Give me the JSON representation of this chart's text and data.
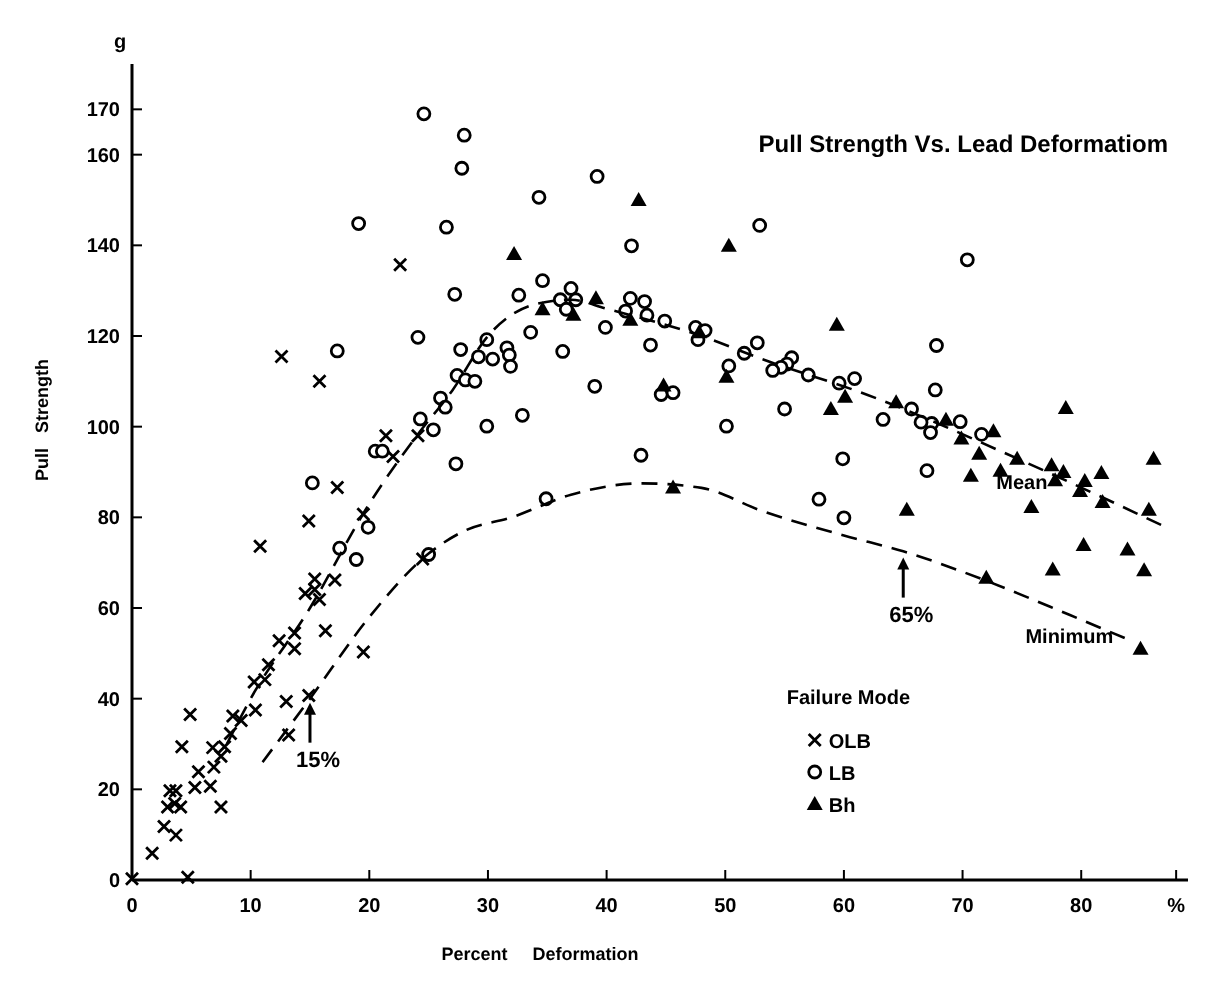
{
  "chart_data": {
    "type": "scatter",
    "title": "Pull Strength Vs. Lead Deformatiom",
    "xlabel": "Percent     Deformation",
    "ylabel": "Pull   Strength",
    "legend_title": "Failure Mode",
    "legend": "bottom right",
    "xlim": [
      0,
      89
    ],
    "ylim": [
      0,
      180
    ],
    "xticks": [
      {
        "value": 0,
        "label": "0"
      },
      10,
      20,
      30,
      40,
      50,
      60,
      70,
      80,
      {
        "value": 88,
        "label": "%"
      }
    ],
    "yticks": [
      0,
      20,
      40,
      60,
      80,
      100,
      120,
      140,
      160,
      170
    ],
    "annotations": [
      {
        "text": "15%",
        "x": 15,
        "y": 40
      },
      {
        "text": "65%",
        "x": 65,
        "y": 72
      },
      "g"
    ],
    "series": [
      {
        "name": "OLB",
        "marker": "cross",
        "color": "#000000",
        "x": [
          22.6,
          12.6,
          15.8,
          21.4,
          24.1,
          22,
          17.3,
          14.9,
          19.5,
          10.8,
          24.5,
          15.4,
          14.6,
          15.4,
          15.8,
          17.1,
          16.3,
          19.5,
          12.4,
          13.7,
          13.7,
          11.5,
          11.2,
          10.3,
          13,
          14.9,
          10.4,
          8.5,
          9.2,
          8.3,
          6.8,
          7.8,
          7.5,
          6.9,
          5.6,
          5.3,
          6.6,
          4.2,
          4.9,
          13.2,
          3.2,
          3.7,
          3,
          3.6,
          4.1,
          7.5,
          2.7,
          3.7,
          1.7,
          4.7,
          0
        ],
        "values": [
          135.7,
          115.5,
          110,
          98,
          98,
          93.4,
          86.6,
          79.2,
          80.7,
          73.6,
          70.8,
          66.4,
          63.2,
          64.1,
          61.9,
          66.2,
          55,
          50.3,
          52.8,
          54.5,
          51,
          47.5,
          44.2,
          43.7,
          39.4,
          40.7,
          37.5,
          36.2,
          35.2,
          32.3,
          29.2,
          29.4,
          27.3,
          24.9,
          23.9,
          20.4,
          20.7,
          29.4,
          36.5,
          32,
          19.7,
          19.7,
          16.1,
          16.9,
          16.1,
          16.1,
          11.8,
          9.9,
          5.9,
          0.6,
          0.3
        ]
      },
      {
        "name": "LB",
        "marker": "circle",
        "color": "#000000",
        "x": [
          24.6,
          19.1,
          24.1,
          17.3,
          24.3,
          20.5,
          21.1,
          15.2,
          19.9,
          17.5,
          18.9,
          28,
          27.8,
          39.2,
          34.3,
          26.5,
          42.1,
          52.9,
          27.2,
          32.6,
          34.6,
          36.1,
          37,
          37.4,
          36.6,
          42,
          43.2,
          41.6,
          43.4,
          44.9,
          39.9,
          47.5,
          48.3,
          47.7,
          43.7,
          52.7,
          51.6,
          29.9,
          33.6,
          27.7,
          31.6,
          31.8,
          31.9,
          30.4,
          36.3,
          27.4,
          28.1,
          28.9,
          29.2,
          26,
          26.4,
          25.4,
          29.9,
          32.9,
          39,
          44.6,
          45.6,
          50.3,
          50.1,
          42.9,
          27.3,
          34.9,
          25,
          70.4,
          55.6,
          55.2,
          54.7,
          54,
          57,
          59.6,
          60.9,
          55,
          67.8,
          67.7,
          65.7,
          63.3,
          67.4,
          67.3,
          66.5,
          69.8,
          71.6,
          59.9,
          67,
          57.9,
          60
        ],
        "values": [
          169,
          144.8,
          119.7,
          116.7,
          101.7,
          94.6,
          94.6,
          87.6,
          77.8,
          73.2,
          70.7,
          164.3,
          157,
          155.2,
          150.6,
          144,
          139.9,
          144.4,
          129.2,
          129,
          132.2,
          128,
          130.5,
          128,
          125.9,
          128.3,
          127.6,
          125.5,
          124.6,
          123.3,
          121.9,
          121.9,
          121.2,
          119.2,
          118,
          118.5,
          116.2,
          119.2,
          120.8,
          117,
          117.4,
          115.8,
          113.3,
          114.9,
          116.6,
          111.3,
          110.3,
          110,
          115.4,
          106.3,
          104.3,
          99.3,
          100.1,
          102.5,
          108.9,
          107.1,
          107.5,
          113.4,
          100.1,
          93.7,
          91.8,
          84.1,
          71.8,
          136.8,
          115.2,
          113.8,
          113.1,
          112.4,
          111.4,
          109.6,
          110.6,
          103.9,
          117.9,
          108.1,
          103.9,
          101.6,
          100.7,
          98.7,
          101,
          101.1,
          98.3,
          92.9,
          90.3,
          84,
          79.9
        ]
      },
      {
        "name": "Bh",
        "marker": "triangle",
        "color": "#000000",
        "x": [
          42.7,
          50.3,
          32.2,
          39.1,
          34.6,
          37.2,
          42,
          47.8,
          44.8,
          50.1,
          45.6,
          59.4,
          60.1,
          58.9,
          64.4,
          68.6,
          69.9,
          72.6,
          71.4,
          74.6,
          78.7,
          77.5,
          78.5,
          81.7,
          86.1,
          70.7,
          73.2,
          77.8,
          80.3,
          79.9,
          81.8,
          75.8,
          85.7,
          65.3,
          80.2,
          83.9,
          77.6,
          85.3,
          72,
          85
        ],
        "values": [
          150,
          139.9,
          138.1,
          128.3,
          125.9,
          124.7,
          123.6,
          120.8,
          109.1,
          111,
          86.6,
          122.5,
          106.6,
          103.9,
          105.4,
          101.5,
          97.4,
          99,
          94,
          92.9,
          104.1,
          91.5,
          90,
          89.8,
          92.9,
          89.2,
          90.3,
          88.2,
          88,
          85.8,
          83.4,
          82.3,
          81.7,
          81.7,
          73.9,
          72.9,
          68.5,
          68.3,
          66.7,
          51
        ]
      },
      {
        "name": "Mean",
        "type": "line",
        "line_style": "dashed",
        "color": "#000000",
        "x": [
          8,
          10,
          15,
          20,
          24,
          27,
          30,
          34,
          37,
          40,
          48,
          53,
          62,
          75,
          87
        ],
        "values": [
          30,
          40,
          60,
          83,
          98,
          108,
          120,
          127,
          128,
          126,
          120,
          115,
          107,
          92.5,
          78
        ]
      },
      {
        "name": "Minimum",
        "type": "line",
        "line_style": "dashed",
        "color": "#000000",
        "x": [
          11,
          15,
          20,
          25,
          28,
          32,
          37,
          43,
          48,
          53,
          60,
          65,
          72,
          79,
          84
        ],
        "values": [
          26,
          40,
          58,
          72,
          77,
          80,
          85,
          87.5,
          86.5,
          81.5,
          76,
          72.5,
          66,
          58.5,
          53
        ]
      }
    ]
  }
}
